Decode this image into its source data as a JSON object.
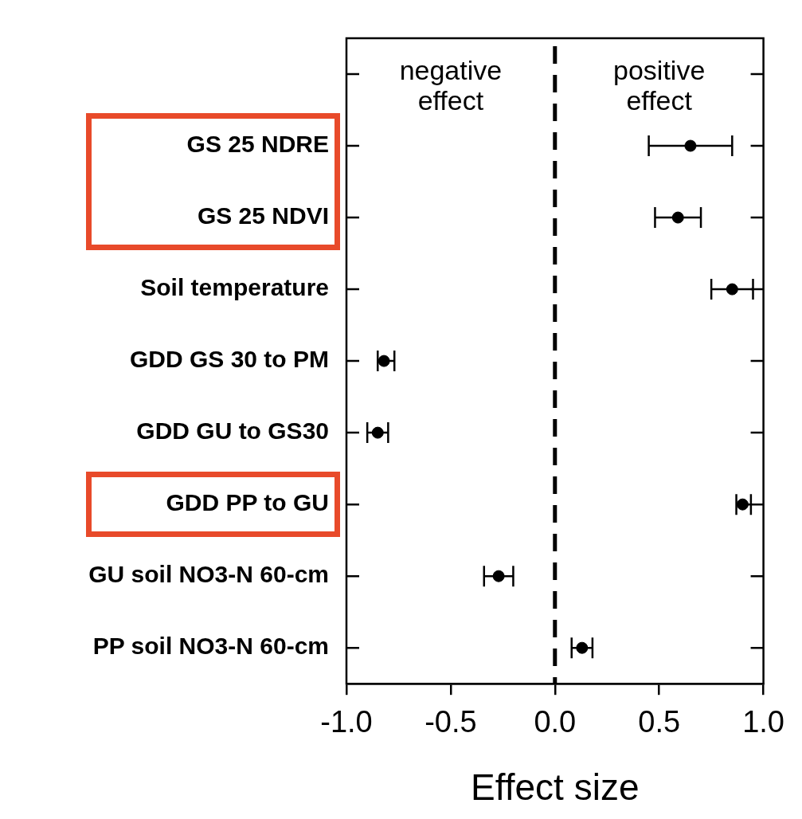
{
  "chart_data": {
    "type": "scatter",
    "orientation": "horizontal",
    "xlabel": "Effect size",
    "categories": [
      null,
      "GS 25 NDRE",
      "GS 25 NDVI",
      "Soil temperature",
      "GDD GS 30 to PM",
      "GDD GU to GS30",
      "GDD PP to GU",
      "GU soil NO3-N 60-cm",
      "PP soil NO3-N 60-cm"
    ],
    "values": [
      null,
      0.65,
      0.59,
      0.85,
      -0.82,
      -0.85,
      0.9,
      -0.27,
      0.13
    ],
    "errors": [
      null,
      [
        0.45,
        0.85
      ],
      [
        0.48,
        0.7
      ],
      [
        0.75,
        0.95
      ],
      [
        -0.85,
        -0.77
      ],
      [
        -0.9,
        -0.8
      ],
      [
        0.87,
        0.94
      ],
      [
        -0.34,
        -0.2
      ],
      [
        0.08,
        0.18
      ]
    ],
    "color": "#000000",
    "marker": "circle",
    "xlim": [
      -1,
      1
    ],
    "xticks": [
      {
        "value": -1,
        "label": "-1.0"
      },
      {
        "value": -0.5,
        "label": "-0.5"
      },
      {
        "value": 0,
        "label": "0.0"
      },
      {
        "value": 0.5,
        "label": "0.5"
      },
      {
        "value": 1,
        "label": "1.0"
      }
    ],
    "ref_lines": [
      {
        "axis": "x",
        "value": 0,
        "line_style": "dashed",
        "color": "#000000"
      }
    ],
    "annotations": [
      "negative\neffect",
      "positive\neffect"
    ],
    "grid": false,
    "legend": false
  }
}
